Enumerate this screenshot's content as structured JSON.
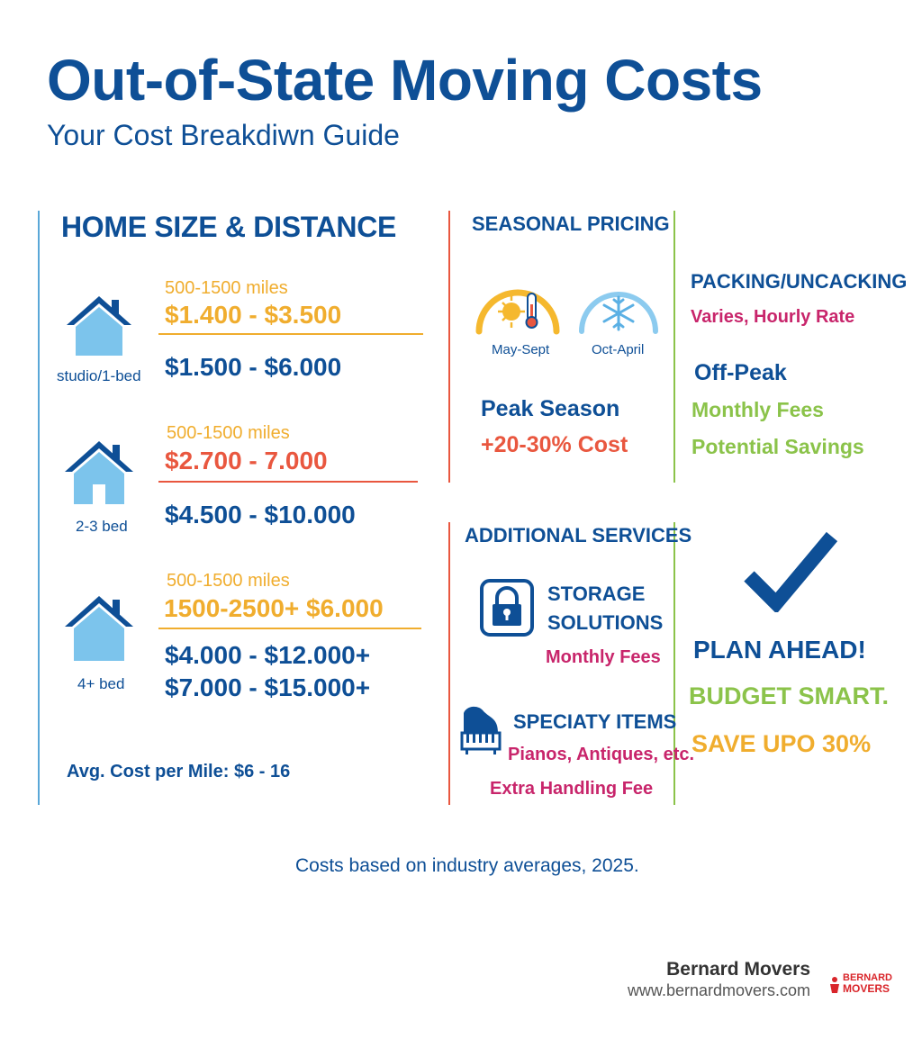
{
  "header": {
    "title": "Out-of-State Moving Costs",
    "subtitle": "Your Cost Breakdiwn Guide"
  },
  "home_size": {
    "heading": "HOME SIZE & DISTANCE",
    "tiers": [
      {
        "label": "studio/1-bed",
        "range_label": "500-1500 miles",
        "range_cost": "$1.400 - $3.500",
        "cost_lines": [
          "$1.500 - $6.000"
        ],
        "icon": "house-icon"
      },
      {
        "label": "2-3 bed",
        "range_label": "500-1500 miles",
        "range_cost": "$2.700 - 7.000",
        "cost_lines": [
          "$4.500 - $10.000"
        ],
        "icon": "house-icon"
      },
      {
        "label": "4+ bed",
        "range_label": "500-1500 miles",
        "range_cost": "1500-2500+ $6.000",
        "cost_lines": [
          "$4.000 - $12.000+",
          "$7.000 - $15.000+"
        ],
        "icon": "house-icon"
      }
    ],
    "avg_cost": "Avg. Cost per Mile: $6 - 16"
  },
  "seasonal": {
    "heading": "SEASONAL PRICING",
    "summer_label": "May-Sept",
    "winter_label": "Oct-April",
    "peak_label": "Peak Season",
    "peak_cost": "+20-30% Cost"
  },
  "packing": {
    "heading": "PACKING/UNCACKING",
    "rate": "Varies, Hourly Rate",
    "offpeak_heading": "Off-Peak",
    "offpeak_fees": "Monthly Fees",
    "offpeak_savings": "Potential Savings"
  },
  "additional": {
    "heading": "ADDITIONAL SERVICES",
    "storage_line1": "STORAGE",
    "storage_line2": "SOLUTIONS",
    "storage_fees": "Monthly Fees",
    "specialty_heading": "SPECIATY ITEMS",
    "specialty_items": "Pianos, Antiques, etc.",
    "specialty_fee": "Extra Handling Fee"
  },
  "plan": {
    "line1": "PLAN AHEAD!",
    "line2": "BUDGET SMART.",
    "line3": "SAVE UPO 30%"
  },
  "footer": {
    "note": "Costs based on industry averages, 2025.",
    "brand": "Bernard Movers",
    "url": "www.bernardmovers.com",
    "logo_text_top": "BERNARD",
    "logo_text_bottom": "MOVERS"
  },
  "colors": {
    "blue": "#0e4f96",
    "light_blue": "#7cc4ec",
    "orange": "#f0ad2e",
    "red": "#e9573f",
    "magenta": "#c8256b",
    "green": "#8bc34a"
  }
}
